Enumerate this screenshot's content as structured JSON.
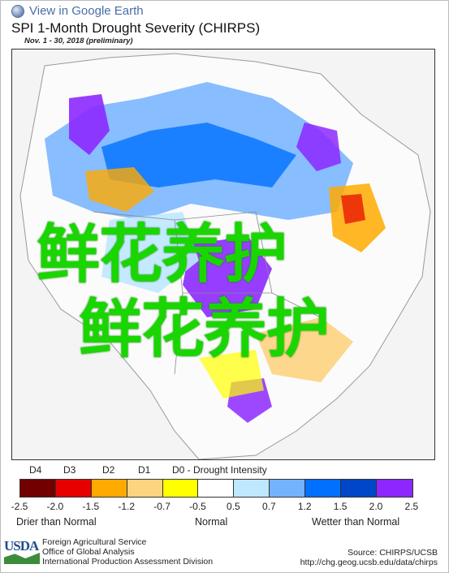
{
  "header": {
    "ge_link": "View in Google Earth",
    "title": "SPI 1-Month Drought Severity (CHIRPS)",
    "subtitle": "Nov. 1 - 30, 2018 (preliminary)"
  },
  "overlay": {
    "line1": "鲜花养护",
    "line2": "鲜花养护"
  },
  "legend": {
    "categories": [
      {
        "code": "D4",
        "label": "D4"
      },
      {
        "code": "D3",
        "label": "D3"
      },
      {
        "code": "D2",
        "label": "D2"
      },
      {
        "code": "D1",
        "label": "D1"
      },
      {
        "code": "D0",
        "label": "D0 - Drought Intensity"
      }
    ],
    "colors": [
      "#730000",
      "#e60000",
      "#ffaa00",
      "#fcd37f",
      "#ffff00",
      "#ffffff",
      "#bee8ff",
      "#73b2ff",
      "#0070ff",
      "#0046c8",
      "#8c28ff"
    ],
    "ticks": [
      "-2.5",
      "-2.0",
      "-1.5",
      "-1.2",
      "-0.7",
      "-0.5",
      "0.5",
      "0.7",
      "1.2",
      "1.5",
      "2.0",
      "2.5"
    ],
    "left_label": "Drier than Normal",
    "center_label": "Normal",
    "right_label": "Wetter than Normal"
  },
  "footer": {
    "logo_text": "USDA",
    "agency_line1": "Foreign Agricultural Service",
    "agency_line2": "Office of Global Analysis",
    "agency_line3": "International Production Assessment Division",
    "source_line1": "Source: CHIRPS/UCSB",
    "source_line2": "http://chg.geog.ucsb.edu/data/chirps"
  }
}
